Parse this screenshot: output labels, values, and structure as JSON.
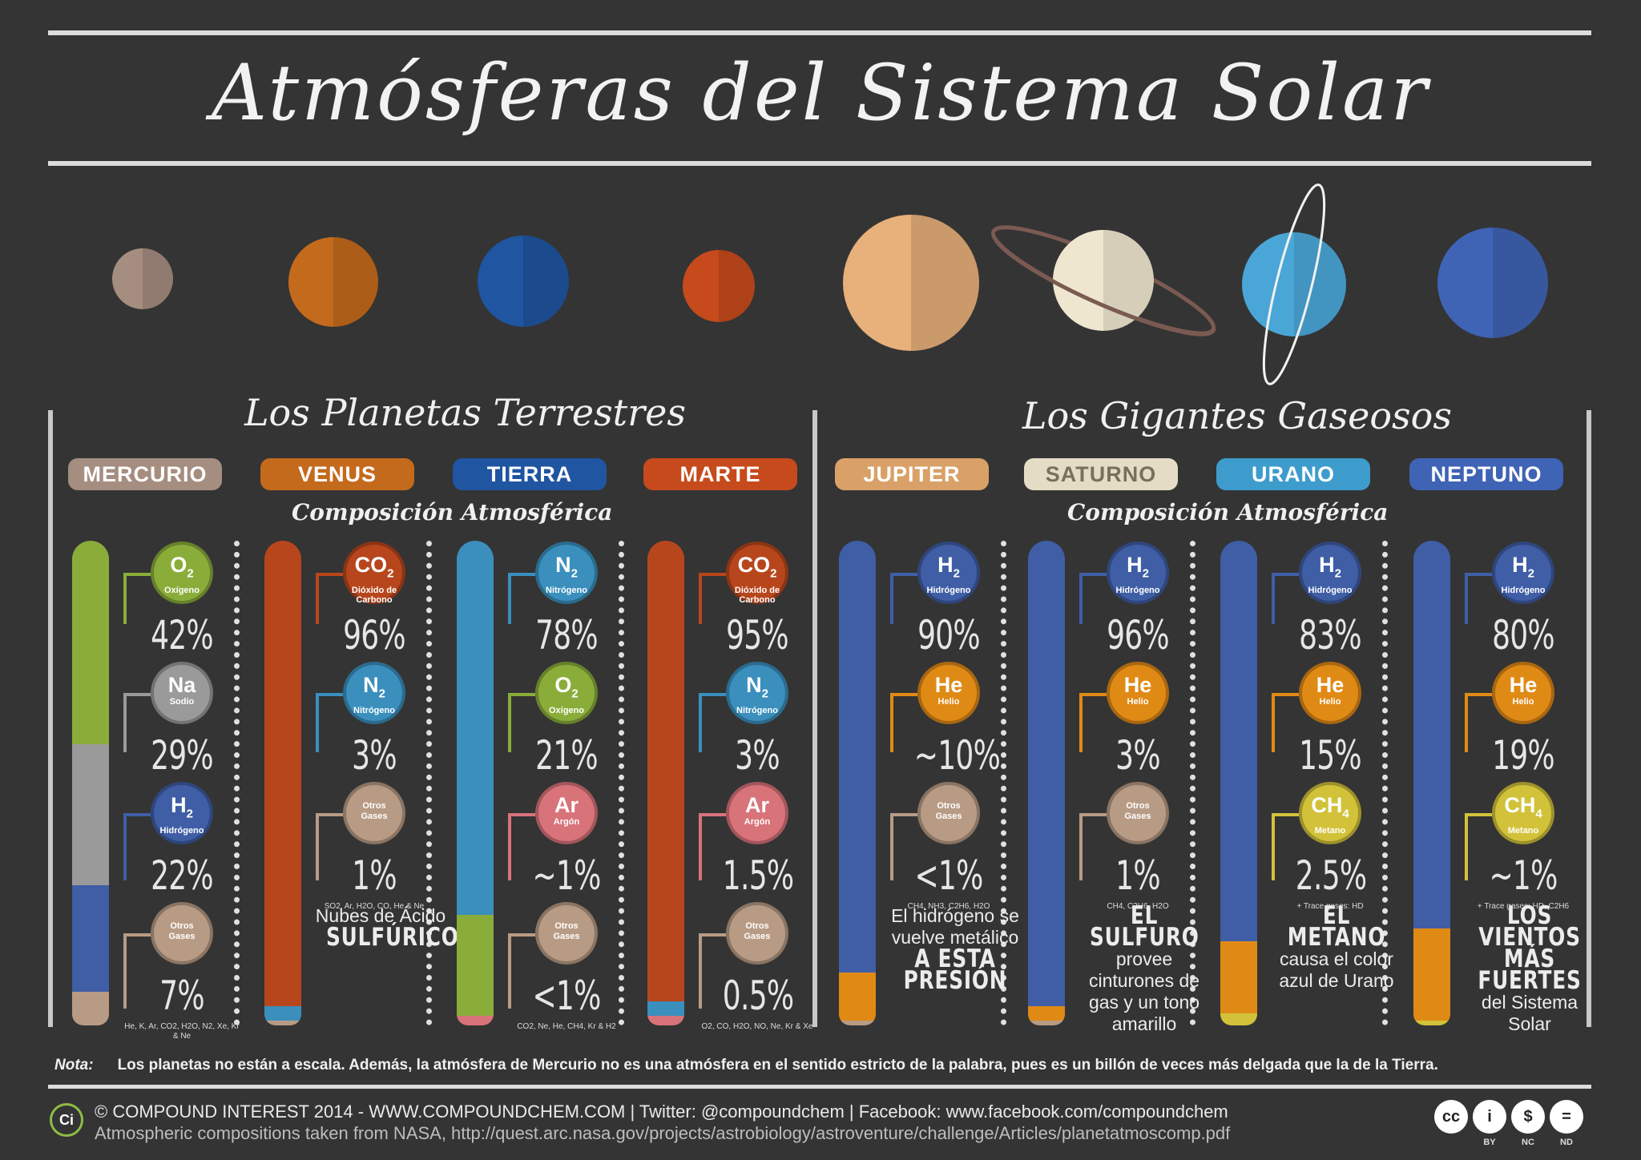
{
  "title": "Atmósferas del Sistema Solar",
  "sections": {
    "terrestrial": "Los Planetas Terrestres",
    "gas": "Los Gigantes Gaseosos",
    "composition": "Composición Atmosférica"
  },
  "colors": {
    "O2": "#8aad3a",
    "Na": "#9a9a9a",
    "H2": "#3f5ea6",
    "otros": "#b89b85",
    "CO2": "#b8461c",
    "N2": "#3a8fbd",
    "Ar": "#d8737a",
    "He": "#e08a16",
    "CH4": "#d2c23a"
  },
  "chart_data": {
    "type": "bar",
    "title": "Atmósferas del Sistema Solar",
    "stacked": true,
    "unit": "%",
    "planets": [
      {
        "name": "MERCURIO",
        "color": "#a58d80",
        "group": "terrestrial",
        "components": [
          {
            "symbol": "O2",
            "label": "Oxígeno",
            "value": 42,
            "display": "42%"
          },
          {
            "symbol": "Na",
            "label": "Sodio",
            "value": 29,
            "display": "29%"
          },
          {
            "symbol": "H2",
            "label": "Hidrógeno",
            "value": 22,
            "display": "22%"
          },
          {
            "symbol": "Otros",
            "label": "Gases",
            "value": 7,
            "display": "7%",
            "detail": "He, K, Ar, CO2, H2O, N2, Xe, Kr & Ne"
          }
        ]
      },
      {
        "name": "VENUS",
        "color": "#c46a1c",
        "group": "terrestrial",
        "components": [
          {
            "symbol": "CO2",
            "label": "Dióxido de Carbono",
            "value": 96,
            "display": "96%"
          },
          {
            "symbol": "N2",
            "label": "Nitrógeno",
            "value": 3,
            "display": "3%"
          },
          {
            "symbol": "Otros",
            "label": "Gases",
            "value": 1,
            "display": "1%",
            "detail": "SO2, Ar, H2O, CO, He & Ne"
          }
        ],
        "note": {
          "text": "Nubes de Ácido",
          "emph": "SULFÚRICO"
        }
      },
      {
        "name": "TIERRA",
        "color": "#1f55a1",
        "group": "terrestrial",
        "components": [
          {
            "symbol": "N2",
            "label": "Nitrógeno",
            "value": 78,
            "display": "78%"
          },
          {
            "symbol": "O2",
            "label": "Oxígeno",
            "value": 21,
            "display": "21%"
          },
          {
            "symbol": "Ar",
            "label": "Argón",
            "value": 1,
            "display": "~1%"
          },
          {
            "symbol": "Otros",
            "label": "Gases",
            "value": 1,
            "display": "<1%",
            "detail": "CO2, Ne, He, CH4, Kr & H2"
          }
        ]
      },
      {
        "name": "MARTE",
        "color": "#c64a1c",
        "group": "terrestrial",
        "components": [
          {
            "symbol": "CO2",
            "label": "Dióxido de Carbono",
            "value": 95,
            "display": "95%"
          },
          {
            "symbol": "N2",
            "label": "Nitrógeno",
            "value": 3,
            "display": "3%"
          },
          {
            "symbol": "Ar",
            "label": "Argón",
            "value": 1.5,
            "display": "1.5%"
          },
          {
            "symbol": "Otros",
            "label": "Gases",
            "value": 0.5,
            "display": "0.5%",
            "detail": "O2, CO, H2O, NO, Ne, Kr & Xe"
          }
        ]
      },
      {
        "name": "JUPITER",
        "color": "#d9a168",
        "group": "gas",
        "components": [
          {
            "symbol": "H2",
            "label": "Hidrógeno",
            "value": 90,
            "display": "90%"
          },
          {
            "symbol": "He",
            "label": "Helio",
            "value": 10,
            "display": "~10%"
          },
          {
            "symbol": "Otros",
            "label": "Gases",
            "value": 1,
            "display": "<1%",
            "detail": "CH4, NH3, C2H6, H2O"
          }
        ],
        "note": {
          "text": "El hidrógeno se vuelve metálico",
          "emph": "A ESTA PRESIÓN"
        }
      },
      {
        "name": "SATURNO",
        "color": "#e4dcc4",
        "group": "gas",
        "components": [
          {
            "symbol": "H2",
            "label": "Hidrógeno",
            "value": 96,
            "display": "96%"
          },
          {
            "symbol": "He",
            "label": "Helio",
            "value": 3,
            "display": "3%"
          },
          {
            "symbol": "Otros",
            "label": "Gases",
            "value": 1,
            "display": "1%",
            "detail": "CH4, C2H6, H2O"
          }
        ],
        "note": {
          "emph": "EL SULFURO",
          "text": "provee cinturones de gas y un tono amarillo"
        }
      },
      {
        "name": "URANO",
        "color": "#3d9ccc",
        "group": "gas",
        "components": [
          {
            "symbol": "H2",
            "label": "Hidrógeno",
            "value": 83,
            "display": "83%"
          },
          {
            "symbol": "He",
            "label": "Helio",
            "value": 15,
            "display": "15%"
          },
          {
            "symbol": "CH4",
            "label": "Metano",
            "value": 2.5,
            "display": "2.5%",
            "detail": "+ Trace gases: HD"
          }
        ],
        "note": {
          "emph": "EL METANO",
          "text": "causa el color azul de Urano"
        }
      },
      {
        "name": "NEPTUNO",
        "color": "#3f63b5",
        "group": "gas",
        "components": [
          {
            "symbol": "H2",
            "label": "Hidrógeno",
            "value": 80,
            "display": "80%"
          },
          {
            "symbol": "He",
            "label": "Helio",
            "value": 19,
            "display": "19%"
          },
          {
            "symbol": "CH4",
            "label": "Metano",
            "value": 1,
            "display": "~1%",
            "detail": "+ Trace gases: HD, C2H6"
          }
        ],
        "note": {
          "emph": "LOS VIENTOS MÁS FUERTES",
          "text": "del Sistema Solar"
        }
      }
    ]
  },
  "footer": {
    "nota_label": "Nota:",
    "nota": "Los planetas no están a escala. Además, la atmósfera de Mercurio no es una atmósfera en el sentido estricto de la palabra, pues es un billón de veces más delgada que la de la Tierra.",
    "credit": "© COMPOUND INTEREST 2014 - WWW.COMPOUNDCHEM.COM | Twitter: @compoundchem | Facebook: www.facebook.com/compoundchem",
    "source": "Atmospheric compositions taken from NASA, http://quest.arc.nasa.gov/projects/astrobiology/astroventure/challenge/Articles/planetatmoscomp.pdf",
    "ci": "Ci",
    "license": [
      "BY",
      "NC",
      "ND"
    ]
  }
}
